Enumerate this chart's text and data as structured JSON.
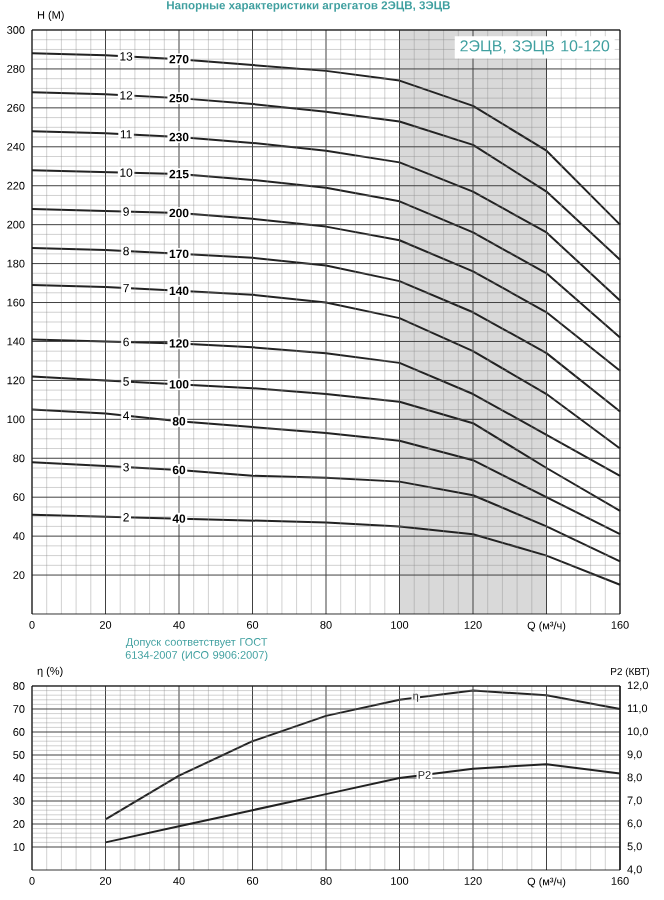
{
  "chart_data": [
    {
      "type": "line",
      "title": "Напорные характеристики агрегатов 2ЭЦВ, 3ЭЦВ",
      "xlabel": "Q (м³/ч)",
      "ylabel": "H (М)",
      "x": [
        0,
        20,
        40,
        60,
        80,
        100,
        120,
        140,
        160
      ],
      "series": [
        {
          "color": "#222222",
          "values": [
            51,
            50,
            49,
            48,
            47,
            45,
            41,
            30,
            15
          ]
        },
        {
          "color": "#222222",
          "values": [
            78,
            76,
            74,
            71,
            70,
            68,
            61,
            45,
            27
          ]
        },
        {
          "color": "#222222",
          "values": [
            105,
            103,
            99,
            96,
            93,
            89,
            79,
            60,
            41
          ]
        },
        {
          "color": "#222222",
          "values": [
            122,
            120,
            118,
            116,
            113,
            109,
            98,
            75,
            53
          ]
        },
        {
          "color": "#222222",
          "values": [
            141,
            140,
            139,
            137,
            134,
            129,
            113,
            92,
            71
          ]
        },
        {
          "color": "#222222",
          "values": [
            169,
            168,
            166,
            164,
            160,
            152,
            135,
            113,
            85
          ]
        },
        {
          "color": "#222222",
          "values": [
            188,
            187,
            185,
            183,
            179,
            171,
            155,
            134,
            104
          ]
        },
        {
          "color": "#222222",
          "values": [
            208,
            207,
            206,
            203,
            199,
            192,
            176,
            155,
            125
          ]
        },
        {
          "color": "#222222",
          "values": [
            228,
            227,
            226,
            223,
            219,
            212,
            196,
            175,
            142
          ]
        },
        {
          "color": "#222222",
          "values": [
            248,
            247,
            245,
            242,
            238,
            232,
            217,
            196,
            161
          ]
        },
        {
          "color": "#222222",
          "values": [
            268,
            267,
            265,
            262,
            258,
            253,
            241,
            217,
            182
          ]
        },
        {
          "color": "#222222",
          "values": [
            288,
            287,
            285,
            282,
            279,
            274,
            261,
            238,
            200
          ]
        }
      ],
      "annotations": [
        "2",
        "40",
        "3",
        "60",
        "4",
        "80",
        "5",
        "100",
        "6",
        "120",
        "7",
        "140",
        "8",
        "170",
        "9",
        "200",
        "10",
        "215",
        "11",
        "230",
        "12",
        "250",
        "13",
        "270",
        "2ЭЦВ, 3ЭЦВ 10-120"
      ],
      "bands": [
        {
          "axis": "x",
          "from": 100,
          "to": 140,
          "color": "#d9d9d9"
        }
      ],
      "xlim": [
        0,
        160
      ],
      "ylim": [
        0,
        300
      ],
      "xticks": [
        0,
        20,
        40,
        60,
        80,
        100,
        120,
        {
          "value": 140,
          "label": null
        },
        160
      ],
      "yticks": [
        20,
        40,
        60,
        80,
        100,
        120,
        140,
        160,
        180,
        200,
        220,
        240,
        260,
        280,
        300
      ],
      "grid": true,
      "marker": "none"
    },
    {
      "type": "line",
      "xlabel": "Q (м³/ч)",
      "ylabel": "η (%)",
      "y2label": "P2 (КВТ)",
      "x": [
        20,
        40,
        60,
        80,
        100,
        120,
        140,
        160
      ],
      "series": [
        {
          "name": "η",
          "color": "#222222",
          "values": [
            22,
            41,
            56,
            67,
            74,
            78,
            76,
            70
          ]
        },
        {
          "name": "P2",
          "color": "#222222",
          "axis": "y2",
          "values": [
            5.2,
            5.9,
            6.6,
            7.3,
            8.0,
            8.4,
            8.6,
            8.2
          ]
        }
      ],
      "annotations": [
        "Допуск соответствует ГОСТ 6134-2007 (ИСО 9906:2007)"
      ],
      "xlim": [
        0,
        160
      ],
      "ylim": [
        0,
        80
      ],
      "y2lim": [
        4,
        12
      ],
      "xticks": [
        0,
        20,
        40,
        60,
        80,
        100,
        120,
        {
          "value": 140,
          "label": null
        },
        160
      ],
      "yticks": [
        10,
        20,
        30,
        40,
        50,
        60,
        70,
        80
      ],
      "y2ticks": [
        {
          "value": 4,
          "label": "4,0"
        },
        {
          "value": 5,
          "label": "5,0"
        },
        {
          "value": 6,
          "label": "6,0"
        },
        {
          "value": 7,
          "label": "7,0"
        },
        {
          "value": 8,
          "label": "8,0"
        },
        {
          "value": 9,
          "label": "9,0"
        },
        {
          "value": 10,
          "label": "10,0"
        },
        {
          "value": 11,
          "label": "11,0"
        },
        {
          "value": 12,
          "label": "12,0"
        }
      ],
      "grid": true,
      "marker": "none"
    }
  ]
}
